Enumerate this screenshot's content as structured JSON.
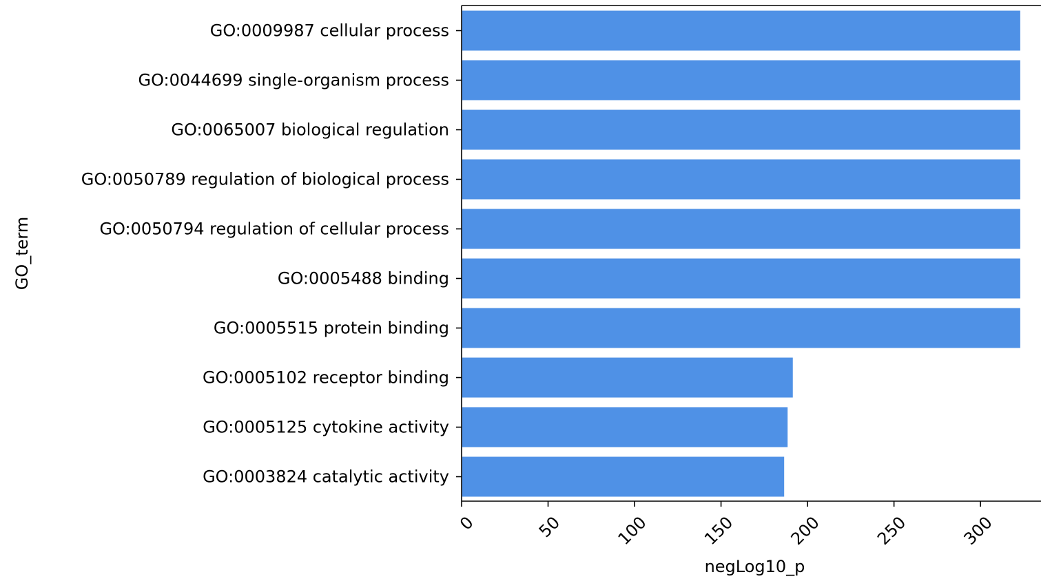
{
  "chart_data": {
    "type": "bar",
    "orientation": "horizontal",
    "title": "",
    "xlabel": "negLog10_p",
    "ylabel": "GO_term",
    "categories": [
      "GO:0009987 cellular process",
      "GO:0044699 single-organism process",
      "GO:0065007 biological regulation",
      "GO:0050789 regulation of biological process",
      "GO:0050794 regulation of cellular process",
      "GO:0005488 binding",
      "GO:0005515 protein binding",
      "GO:0005102 receptor binding",
      "GO:0005125 cytokine activity",
      "GO:0003824 catalytic activity"
    ],
    "values": [
      323,
      323,
      323,
      323,
      323,
      323,
      323,
      191.5,
      188.5,
      186.5
    ],
    "xlim": [
      0,
      335
    ],
    "xticks": [
      0,
      50,
      100,
      150,
      200,
      250,
      300
    ],
    "xtick_labels": [
      "0",
      "50",
      "100",
      "150",
      "200",
      "250",
      "300"
    ],
    "bar_color": "#4f91e6",
    "grid": false,
    "legend": "none"
  }
}
